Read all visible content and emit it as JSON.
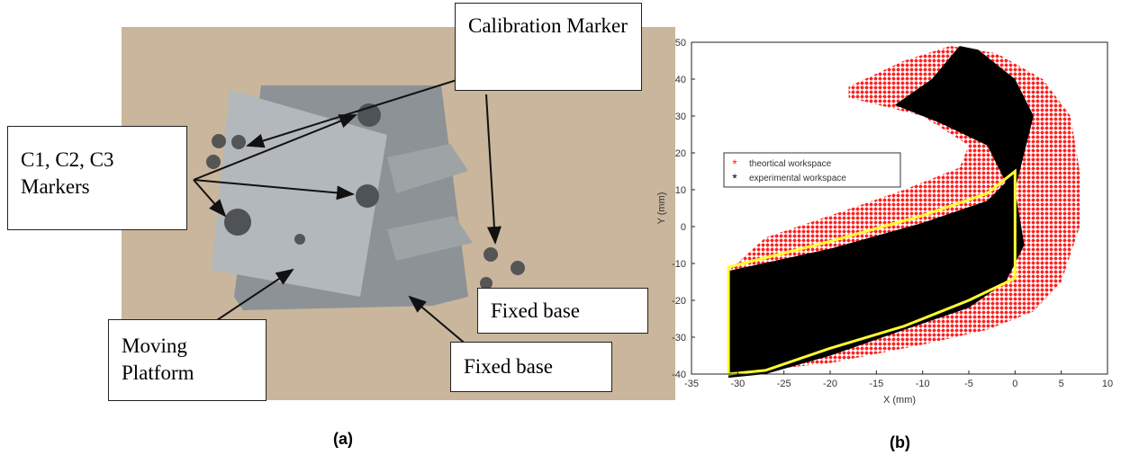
{
  "photo": {
    "callouts": [
      "Calibration Marker",
      "C1, C2, C3 Markers",
      "Moving Platform",
      "Fixed base",
      "Fixed base"
    ],
    "caption": "(a)"
  },
  "chart_data": {
    "type": "scatter",
    "caption": "(b)",
    "xlabel": "X (mm)",
    "ylabel": "Y (mm)",
    "xlim": [
      -35,
      10
    ],
    "ylim": [
      -40,
      50
    ],
    "xticks": [
      -35,
      -30,
      -25,
      -20,
      -15,
      -10,
      -5,
      0,
      5,
      10
    ],
    "yticks": [
      -40,
      -30,
      -20,
      -10,
      0,
      10,
      20,
      30,
      40,
      50
    ],
    "legend": "upper left",
    "series": [
      {
        "name": "theortical workspace",
        "color": "#ff2020",
        "x": [
          -31,
          -31,
          -27,
          -20,
          -12,
          -6,
          -5,
          -10,
          -18,
          -18,
          -12,
          -7,
          -2,
          3,
          6,
          7,
          7,
          5,
          2,
          -3,
          -10,
          -20
        ],
        "values": [
          -40,
          -12,
          -3,
          3,
          10,
          16,
          22,
          30,
          35,
          38,
          45,
          49,
          47,
          40,
          30,
          15,
          0,
          -15,
          -23,
          -28,
          -32,
          -37
        ]
      },
      {
        "name": "experimental workspace",
        "color": "#000000",
        "x": [
          -31,
          -31,
          -20,
          -10,
          -3,
          -1,
          -3,
          -8,
          -13,
          -9,
          -6,
          -4,
          0,
          2,
          1,
          0,
          1,
          -1,
          -5,
          -12,
          -20,
          -27
        ],
        "values": [
          -41,
          -12,
          -6,
          1,
          7,
          12,
          22,
          28,
          33,
          40,
          49,
          48,
          40,
          30,
          20,
          10,
          -5,
          -15,
          -22,
          -28,
          -35,
          -40
        ]
      },
      {
        "color": "#ffff33",
        "x": [
          -31,
          -31,
          -20,
          -10,
          -3,
          0,
          0,
          -5,
          -12,
          -20,
          -27,
          -31
        ],
        "values": [
          -40,
          -11,
          -4,
          3,
          9,
          15,
          -14,
          -20,
          -27,
          -33,
          -39,
          -40
        ]
      }
    ]
  }
}
